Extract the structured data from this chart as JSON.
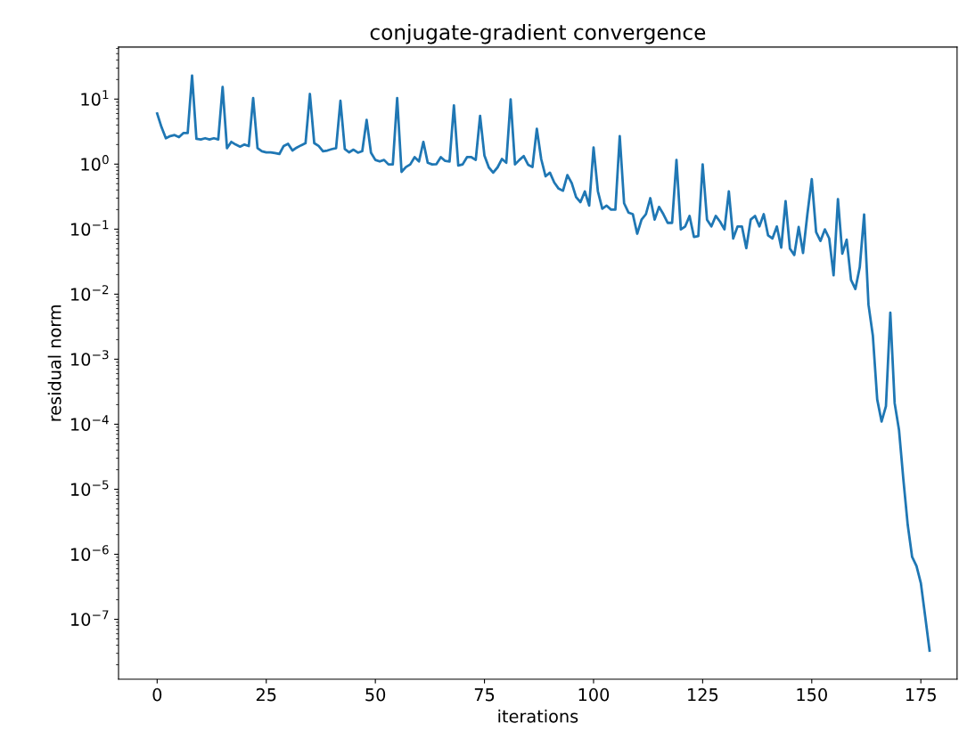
{
  "chart_data": {
    "type": "line",
    "title": "conjugate-gradient convergence",
    "xlabel": "iterations",
    "ylabel": "residual norm",
    "log": "y",
    "marker": "none",
    "line_style": "solid",
    "x": [
      0,
      1,
      2,
      3,
      4,
      5,
      6,
      7,
      8,
      9,
      10,
      11,
      12,
      13,
      14,
      15,
      16,
      17,
      18,
      19,
      20,
      21,
      22,
      23,
      24,
      25,
      26,
      27,
      28,
      29,
      30,
      31,
      32,
      33,
      34,
      35,
      36,
      37,
      38,
      39,
      40,
      41,
      42,
      43,
      44,
      45,
      46,
      47,
      48,
      49,
      50,
      51,
      52,
      53,
      54,
      55,
      56,
      57,
      58,
      59,
      60,
      61,
      62,
      63,
      64,
      65,
      66,
      67,
      68,
      69,
      70,
      71,
      72,
      73,
      74,
      75,
      76,
      77,
      78,
      79,
      80,
      81,
      82,
      83,
      84,
      85,
      86,
      87,
      88,
      89,
      90,
      91,
      92,
      93,
      94,
      95,
      96,
      97,
      98,
      99,
      100,
      101,
      102,
      103,
      104,
      105,
      106,
      107,
      108,
      109,
      110,
      111,
      112,
      113,
      114,
      115,
      116,
      117,
      118,
      119,
      120,
      121,
      122,
      123,
      124,
      125,
      126,
      127,
      128,
      129,
      130,
      131,
      132,
      133,
      134,
      135,
      136,
      137,
      138,
      139,
      140,
      141,
      142,
      143,
      144,
      145,
      146,
      147,
      148,
      149,
      150,
      151,
      152,
      153,
      154,
      155,
      156,
      157,
      158,
      159,
      160,
      161,
      162,
      163,
      164,
      165,
      166,
      167,
      168,
      169,
      170,
      171,
      172,
      173,
      174,
      175,
      176,
      177
    ],
    "series": [
      {
        "color": "#1f77b4",
        "values": [
          6.0,
          3.7,
          2.5,
          2.7,
          2.8,
          2.6,
          3.0,
          3.0,
          23,
          2.45,
          2.4,
          2.5,
          2.4,
          2.5,
          2.4,
          15.4,
          1.76,
          2.2,
          2.0,
          1.86,
          2.0,
          1.9,
          10.4,
          1.76,
          1.58,
          1.52,
          1.52,
          1.48,
          1.43,
          1.9,
          2.05,
          1.62,
          1.8,
          1.95,
          2.1,
          12,
          2.1,
          1.9,
          1.58,
          1.62,
          1.7,
          1.76,
          9.4,
          1.7,
          1.52,
          1.67,
          1.5,
          1.58,
          4.8,
          1.5,
          1.16,
          1.1,
          1.16,
          0.99,
          0.99,
          10.4,
          0.76,
          0.9,
          0.99,
          1.28,
          1.1,
          2.2,
          1.05,
          0.99,
          1.0,
          1.28,
          1.12,
          1.1,
          8.0,
          0.95,
          0.99,
          1.28,
          1.28,
          1.16,
          5.5,
          1.35,
          0.89,
          0.74,
          0.89,
          1.2,
          1.05,
          9.9,
          0.99,
          1.16,
          1.33,
          0.98,
          0.9,
          3.5,
          1.2,
          0.65,
          0.74,
          0.52,
          0.42,
          0.39,
          0.68,
          0.51,
          0.31,
          0.26,
          0.38,
          0.23,
          1.8,
          0.38,
          0.206,
          0.23,
          0.2,
          0.2,
          2.7,
          0.25,
          0.18,
          0.17,
          0.085,
          0.14,
          0.17,
          0.3,
          0.14,
          0.22,
          0.17,
          0.125,
          0.125,
          1.16,
          0.099,
          0.11,
          0.16,
          0.076,
          0.078,
          0.99,
          0.14,
          0.11,
          0.16,
          0.13,
          0.099,
          0.38,
          0.072,
          0.11,
          0.11,
          0.051,
          0.14,
          0.16,
          0.11,
          0.17,
          0.08,
          0.072,
          0.11,
          0.052,
          0.27,
          0.05,
          0.04,
          0.108,
          0.043,
          0.17,
          0.59,
          0.09,
          0.066,
          0.099,
          0.072,
          0.0195,
          0.29,
          0.042,
          0.069,
          0.0166,
          0.012,
          0.026,
          0.168,
          0.0069,
          0.0023,
          0.00024,
          0.00011,
          0.00019,
          0.0052,
          0.00021,
          8.1e-05,
          1.4e-05,
          2.8e-06,
          9.1e-07,
          6.6e-07,
          3.6e-07,
          1.1e-07,
          3.3e-08
        ]
      }
    ],
    "xlim": [
      -8.85,
      183.3
    ],
    "xticks": [
      0,
      25,
      50,
      75,
      100,
      125,
      150,
      175
    ],
    "ylim": [
      1.2e-08,
      63
    ],
    "yticks": [
      {
        "value": 1e-07,
        "label": "10$^{−7}$"
      },
      {
        "value": 1e-06,
        "label": "10$^{−6}$"
      },
      {
        "value": 1e-05,
        "label": "10$^{−5}$"
      },
      {
        "value": 0.0001,
        "label": "10$^{−4}$"
      },
      {
        "value": 0.001,
        "label": "10$^{−3}$"
      },
      {
        "value": 0.01,
        "label": "10$^{−2}$"
      },
      {
        "value": 0.1,
        "label": "10$^{−1}$"
      },
      {
        "value": 1,
        "label": "10$^{0}$"
      },
      {
        "value": 10,
        "label": "10$^{1}$"
      }
    ]
  }
}
